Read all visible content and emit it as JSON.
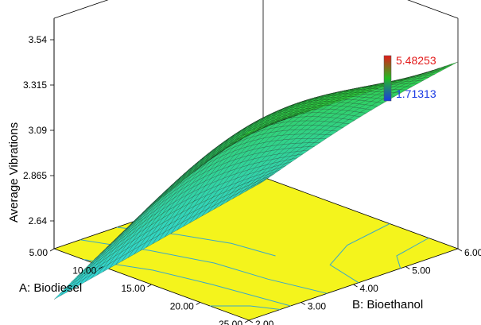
{
  "chart_data": {
    "type": "surface3d",
    "title": "",
    "zlabel": "Average Vibrations",
    "xlabel": "A: Biodiesel",
    "ylabel": "B: Bioethanol",
    "x_range": [
      5,
      25
    ],
    "y_range": [
      2,
      6
    ],
    "z_range": [
      2.64,
      3.54
    ],
    "z_ticks": [
      "2.64",
      "2.865",
      "3.09",
      "3.315",
      "3.54"
    ],
    "x_ticks": [
      "5.00",
      "10.00",
      "15.00",
      "20.00",
      "25.00"
    ],
    "y_ticks": [
      "2.00",
      "3.00",
      "4.00",
      "5.00",
      "6.00"
    ],
    "surface_corners": [
      {
        "x": 5,
        "y": 2,
        "z": 2.25
      },
      {
        "x": 25,
        "y": 2,
        "z": 3.44
      },
      {
        "x": 25,
        "y": 6,
        "z": 3.43
      },
      {
        "x": 5,
        "y": 6,
        "z": 2.48
      }
    ],
    "surface_peak": {
      "x": 20,
      "y": 3.5,
      "z": 3.55
    },
    "colorbar": {
      "max_label": "5.48253",
      "min_label": "1.71313",
      "max_color": "#e31a1a",
      "min_color": "#1a3ae3",
      "gradient": [
        "#e31a1a",
        "#22bb22",
        "#1a3ae3"
      ]
    },
    "colors": {
      "floor": "#f4f41c",
      "contour": "#3aa8c8",
      "surface_high": "#2fce2f",
      "surface_low": "#33d6e0",
      "mesh": "#111111"
    },
    "grid": true
  }
}
